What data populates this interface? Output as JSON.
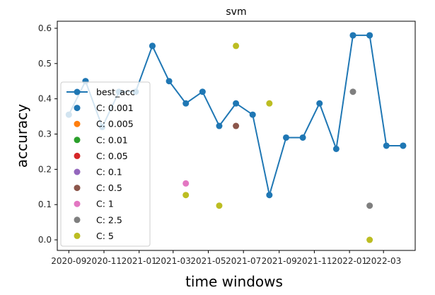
{
  "chart_data": {
    "type": "line",
    "title": "svm",
    "xlabel": "time windows",
    "ylabel": "accuracy",
    "ylim": [
      -0.03,
      0.62
    ],
    "yticks": [
      0.0,
      0.1,
      0.2,
      0.3,
      0.4,
      0.5,
      0.6
    ],
    "ytick_labels": [
      "0.0",
      "0.1",
      "0.2",
      "0.3",
      "0.4",
      "0.5",
      "0.6"
    ],
    "x_tick_labels": [
      "2020-09",
      "2020-11",
      "2021-01",
      "2021-03",
      "2021-05",
      "2021-07",
      "2021-09",
      "2021-11",
      "2022-01",
      "2022-03"
    ],
    "x_tick_positions": [
      "2020-09-01",
      "2020-11-01",
      "2021-01-01",
      "2021-03-01",
      "2021-05-01",
      "2021-07-01",
      "2021-09-01",
      "2021-11-01",
      "2022-01-01",
      "2022-03-01"
    ],
    "xlim": [
      "2020-08-12",
      "2022-04-25"
    ],
    "grid": false,
    "legend_position": "lower-left",
    "line_series": {
      "name": "best_acc",
      "color": "#1f77b4",
      "x": [
        "2020-09-01",
        "2020-09-30",
        "2020-10-29",
        "2020-11-27",
        "2020-12-26",
        "2021-01-24",
        "2021-02-22",
        "2021-03-23",
        "2021-04-21",
        "2021-05-20",
        "2021-06-18",
        "2021-07-17",
        "2021-08-15",
        "2021-09-13",
        "2021-10-12",
        "2021-11-10",
        "2021-12-09",
        "2022-01-07",
        "2022-02-05",
        "2022-03-06",
        "2022-04-04"
      ],
      "y": [
        0.355,
        0.45,
        0.32,
        0.42,
        0.42,
        0.55,
        0.45,
        0.387,
        0.42,
        0.323,
        0.387,
        0.355,
        0.127,
        0.29,
        0.29,
        0.387,
        0.258,
        0.58,
        0.58,
        0.267,
        0.267
      ]
    },
    "scatter_series": [
      {
        "name": "C: 0.001",
        "color": "#1f77b4",
        "points": [
          {
            "x": "2020-09-30",
            "y": 0.45
          },
          {
            "x": "2021-01-24",
            "y": 0.55
          },
          {
            "x": "2022-01-07",
            "y": 0.58
          },
          {
            "x": "2022-02-05",
            "y": 0.58
          },
          {
            "x": "2022-04-04",
            "y": 0.267
          }
        ]
      },
      {
        "name": "C: 0.005",
        "color": "#ff7f0e",
        "points": []
      },
      {
        "name": "C: 0.01",
        "color": "#2ca02c",
        "points": []
      },
      {
        "name": "C: 0.05",
        "color": "#d62728",
        "points": []
      },
      {
        "name": "C: 0.1",
        "color": "#9467bd",
        "points": []
      },
      {
        "name": "C: 0.5",
        "color": "#8c564b",
        "points": [
          {
            "x": "2021-06-18",
            "y": 0.323
          }
        ]
      },
      {
        "name": "C: 1",
        "color": "#e377c2",
        "points": [
          {
            "x": "2021-03-23",
            "y": 0.16
          }
        ]
      },
      {
        "name": "C: 2.5",
        "color": "#7f7f7f",
        "points": [
          {
            "x": "2022-01-07",
            "y": 0.42
          },
          {
            "x": "2022-02-05",
            "y": 0.097
          }
        ]
      },
      {
        "name": "C: 5",
        "color": "#bcbd22",
        "points": [
          {
            "x": "2021-03-23",
            "y": 0.127
          },
          {
            "x": "2021-05-20",
            "y": 0.097
          },
          {
            "x": "2021-06-18",
            "y": 0.55
          },
          {
            "x": "2021-08-15",
            "y": 0.387
          },
          {
            "x": "2022-02-05",
            "y": 0.0
          }
        ]
      }
    ]
  }
}
